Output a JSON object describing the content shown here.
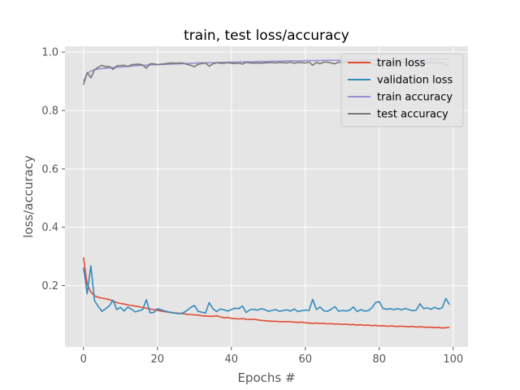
{
  "chart_data": {
    "type": "line",
    "title": "train, test loss/accuracy",
    "xlabel": "Epochs #",
    "ylabel": "loss/accuracy",
    "xlim": [
      -5,
      104
    ],
    "ylim": [
      -0.01,
      1.02
    ],
    "xticks": [
      0,
      20,
      40,
      60,
      80,
      100
    ],
    "yticks": [
      0.2,
      0.4,
      0.6,
      0.8,
      1.0
    ],
    "ytick_labels": [
      "0.2",
      "0.4",
      "0.6",
      "0.8",
      "1.0"
    ],
    "grid": true,
    "legend_position": "top-right",
    "background": "#e5e5e5",
    "series": [
      {
        "name": "train loss",
        "color": "#e24a33",
        "values": [
          0.297,
          0.205,
          0.178,
          0.165,
          0.16,
          0.157,
          0.155,
          0.152,
          0.147,
          0.142,
          0.139,
          0.137,
          0.134,
          0.132,
          0.13,
          0.128,
          0.125,
          0.123,
          0.12,
          0.118,
          0.115,
          0.113,
          0.111,
          0.109,
          0.107,
          0.106,
          0.105,
          0.104,
          0.102,
          0.101,
          0.1,
          0.099,
          0.097,
          0.096,
          0.095,
          0.095,
          0.097,
          0.093,
          0.09,
          0.091,
          0.088,
          0.087,
          0.086,
          0.087,
          0.085,
          0.084,
          0.085,
          0.083,
          0.081,
          0.08,
          0.079,
          0.078,
          0.078,
          0.077,
          0.076,
          0.077,
          0.076,
          0.075,
          0.074,
          0.075,
          0.073,
          0.072,
          0.071,
          0.072,
          0.07,
          0.071,
          0.069,
          0.07,
          0.068,
          0.069,
          0.067,
          0.068,
          0.066,
          0.067,
          0.065,
          0.066,
          0.064,
          0.065,
          0.063,
          0.064,
          0.062,
          0.063,
          0.061,
          0.062,
          0.061,
          0.06,
          0.061,
          0.06,
          0.059,
          0.06,
          0.058,
          0.059,
          0.058,
          0.057,
          0.058,
          0.056,
          0.057,
          0.055,
          0.056,
          0.057
        ]
      },
      {
        "name": "validation loss",
        "color": "#348abd",
        "values": [
          0.262,
          0.172,
          0.268,
          0.148,
          0.129,
          0.112,
          0.121,
          0.131,
          0.15,
          0.118,
          0.126,
          0.113,
          0.127,
          0.119,
          0.11,
          0.114,
          0.118,
          0.152,
          0.107,
          0.108,
          0.121,
          0.117,
          0.113,
          0.11,
          0.108,
          0.105,
          0.104,
          0.107,
          0.115,
          0.125,
          0.132,
          0.112,
          0.109,
          0.106,
          0.142,
          0.121,
          0.111,
          0.12,
          0.117,
          0.113,
          0.118,
          0.123,
          0.121,
          0.13,
          0.108,
          0.117,
          0.119,
          0.116,
          0.121,
          0.118,
          0.112,
          0.115,
          0.118,
          0.112,
          0.115,
          0.117,
          0.113,
          0.12,
          0.111,
          0.114,
          0.116,
          0.115,
          0.153,
          0.118,
          0.127,
          0.114,
          0.112,
          0.119,
          0.128,
          0.112,
          0.115,
          0.113,
          0.116,
          0.127,
          0.111,
          0.118,
          0.113,
          0.114,
          0.124,
          0.142,
          0.145,
          0.122,
          0.119,
          0.121,
          0.118,
          0.121,
          0.117,
          0.122,
          0.118,
          0.114,
          0.116,
          0.138,
          0.121,
          0.124,
          0.119,
          0.126,
          0.12,
          0.124,
          0.156,
          0.135
        ]
      },
      {
        "name": "train accuracy",
        "color": "#988ed5",
        "values": [
          0.9,
          0.927,
          0.935,
          0.94,
          0.942,
          0.944,
          0.945,
          0.946,
          0.947,
          0.948,
          0.949,
          0.95,
          0.951,
          0.952,
          0.953,
          0.954,
          0.955,
          0.955,
          0.956,
          0.957,
          0.957,
          0.958,
          0.958,
          0.959,
          0.959,
          0.96,
          0.96,
          0.961,
          0.961,
          0.962,
          0.962,
          0.963,
          0.963,
          0.963,
          0.964,
          0.964,
          0.964,
          0.965,
          0.965,
          0.965,
          0.966,
          0.966,
          0.966,
          0.967,
          0.967,
          0.967,
          0.967,
          0.968,
          0.968,
          0.968,
          0.968,
          0.969,
          0.969,
          0.969,
          0.969,
          0.97,
          0.97,
          0.97,
          0.97,
          0.97,
          0.971,
          0.971,
          0.971,
          0.971,
          0.971,
          0.972,
          0.972,
          0.972,
          0.972,
          0.972,
          0.972,
          0.973,
          0.973,
          0.973,
          0.973,
          0.973,
          0.973,
          0.973,
          0.974,
          0.974,
          0.974,
          0.974,
          0.974,
          0.974,
          0.974,
          0.974,
          0.975,
          0.975,
          0.975,
          0.975,
          0.975,
          0.975,
          0.975,
          0.975,
          0.975,
          0.976,
          0.976,
          0.976,
          0.976,
          0.976
        ]
      },
      {
        "name": "test accuracy",
        "color": "#777777",
        "values": [
          0.888,
          0.93,
          0.912,
          0.94,
          0.948,
          0.955,
          0.95,
          0.951,
          0.941,
          0.953,
          0.954,
          0.955,
          0.951,
          0.957,
          0.958,
          0.959,
          0.956,
          0.945,
          0.96,
          0.96,
          0.957,
          0.959,
          0.96,
          0.962,
          0.963,
          0.962,
          0.963,
          0.962,
          0.958,
          0.955,
          0.95,
          0.958,
          0.961,
          0.963,
          0.952,
          0.96,
          0.964,
          0.962,
          0.962,
          0.964,
          0.962,
          0.961,
          0.963,
          0.959,
          0.965,
          0.963,
          0.962,
          0.963,
          0.962,
          0.963,
          0.964,
          0.964,
          0.963,
          0.965,
          0.964,
          0.963,
          0.966,
          0.962,
          0.965,
          0.964,
          0.963,
          0.966,
          0.955,
          0.965,
          0.96,
          0.966,
          0.966,
          0.963,
          0.96,
          0.966,
          0.965,
          0.966,
          0.965,
          0.961,
          0.966,
          0.964,
          0.966,
          0.966,
          0.962,
          0.956,
          0.955,
          0.963,
          0.965,
          0.964,
          0.966,
          0.964,
          0.966,
          0.964,
          0.965,
          0.966,
          0.966,
          0.958,
          0.965,
          0.963,
          0.966,
          0.962,
          0.965,
          0.963,
          0.956,
          0.96
        ]
      }
    ]
  }
}
